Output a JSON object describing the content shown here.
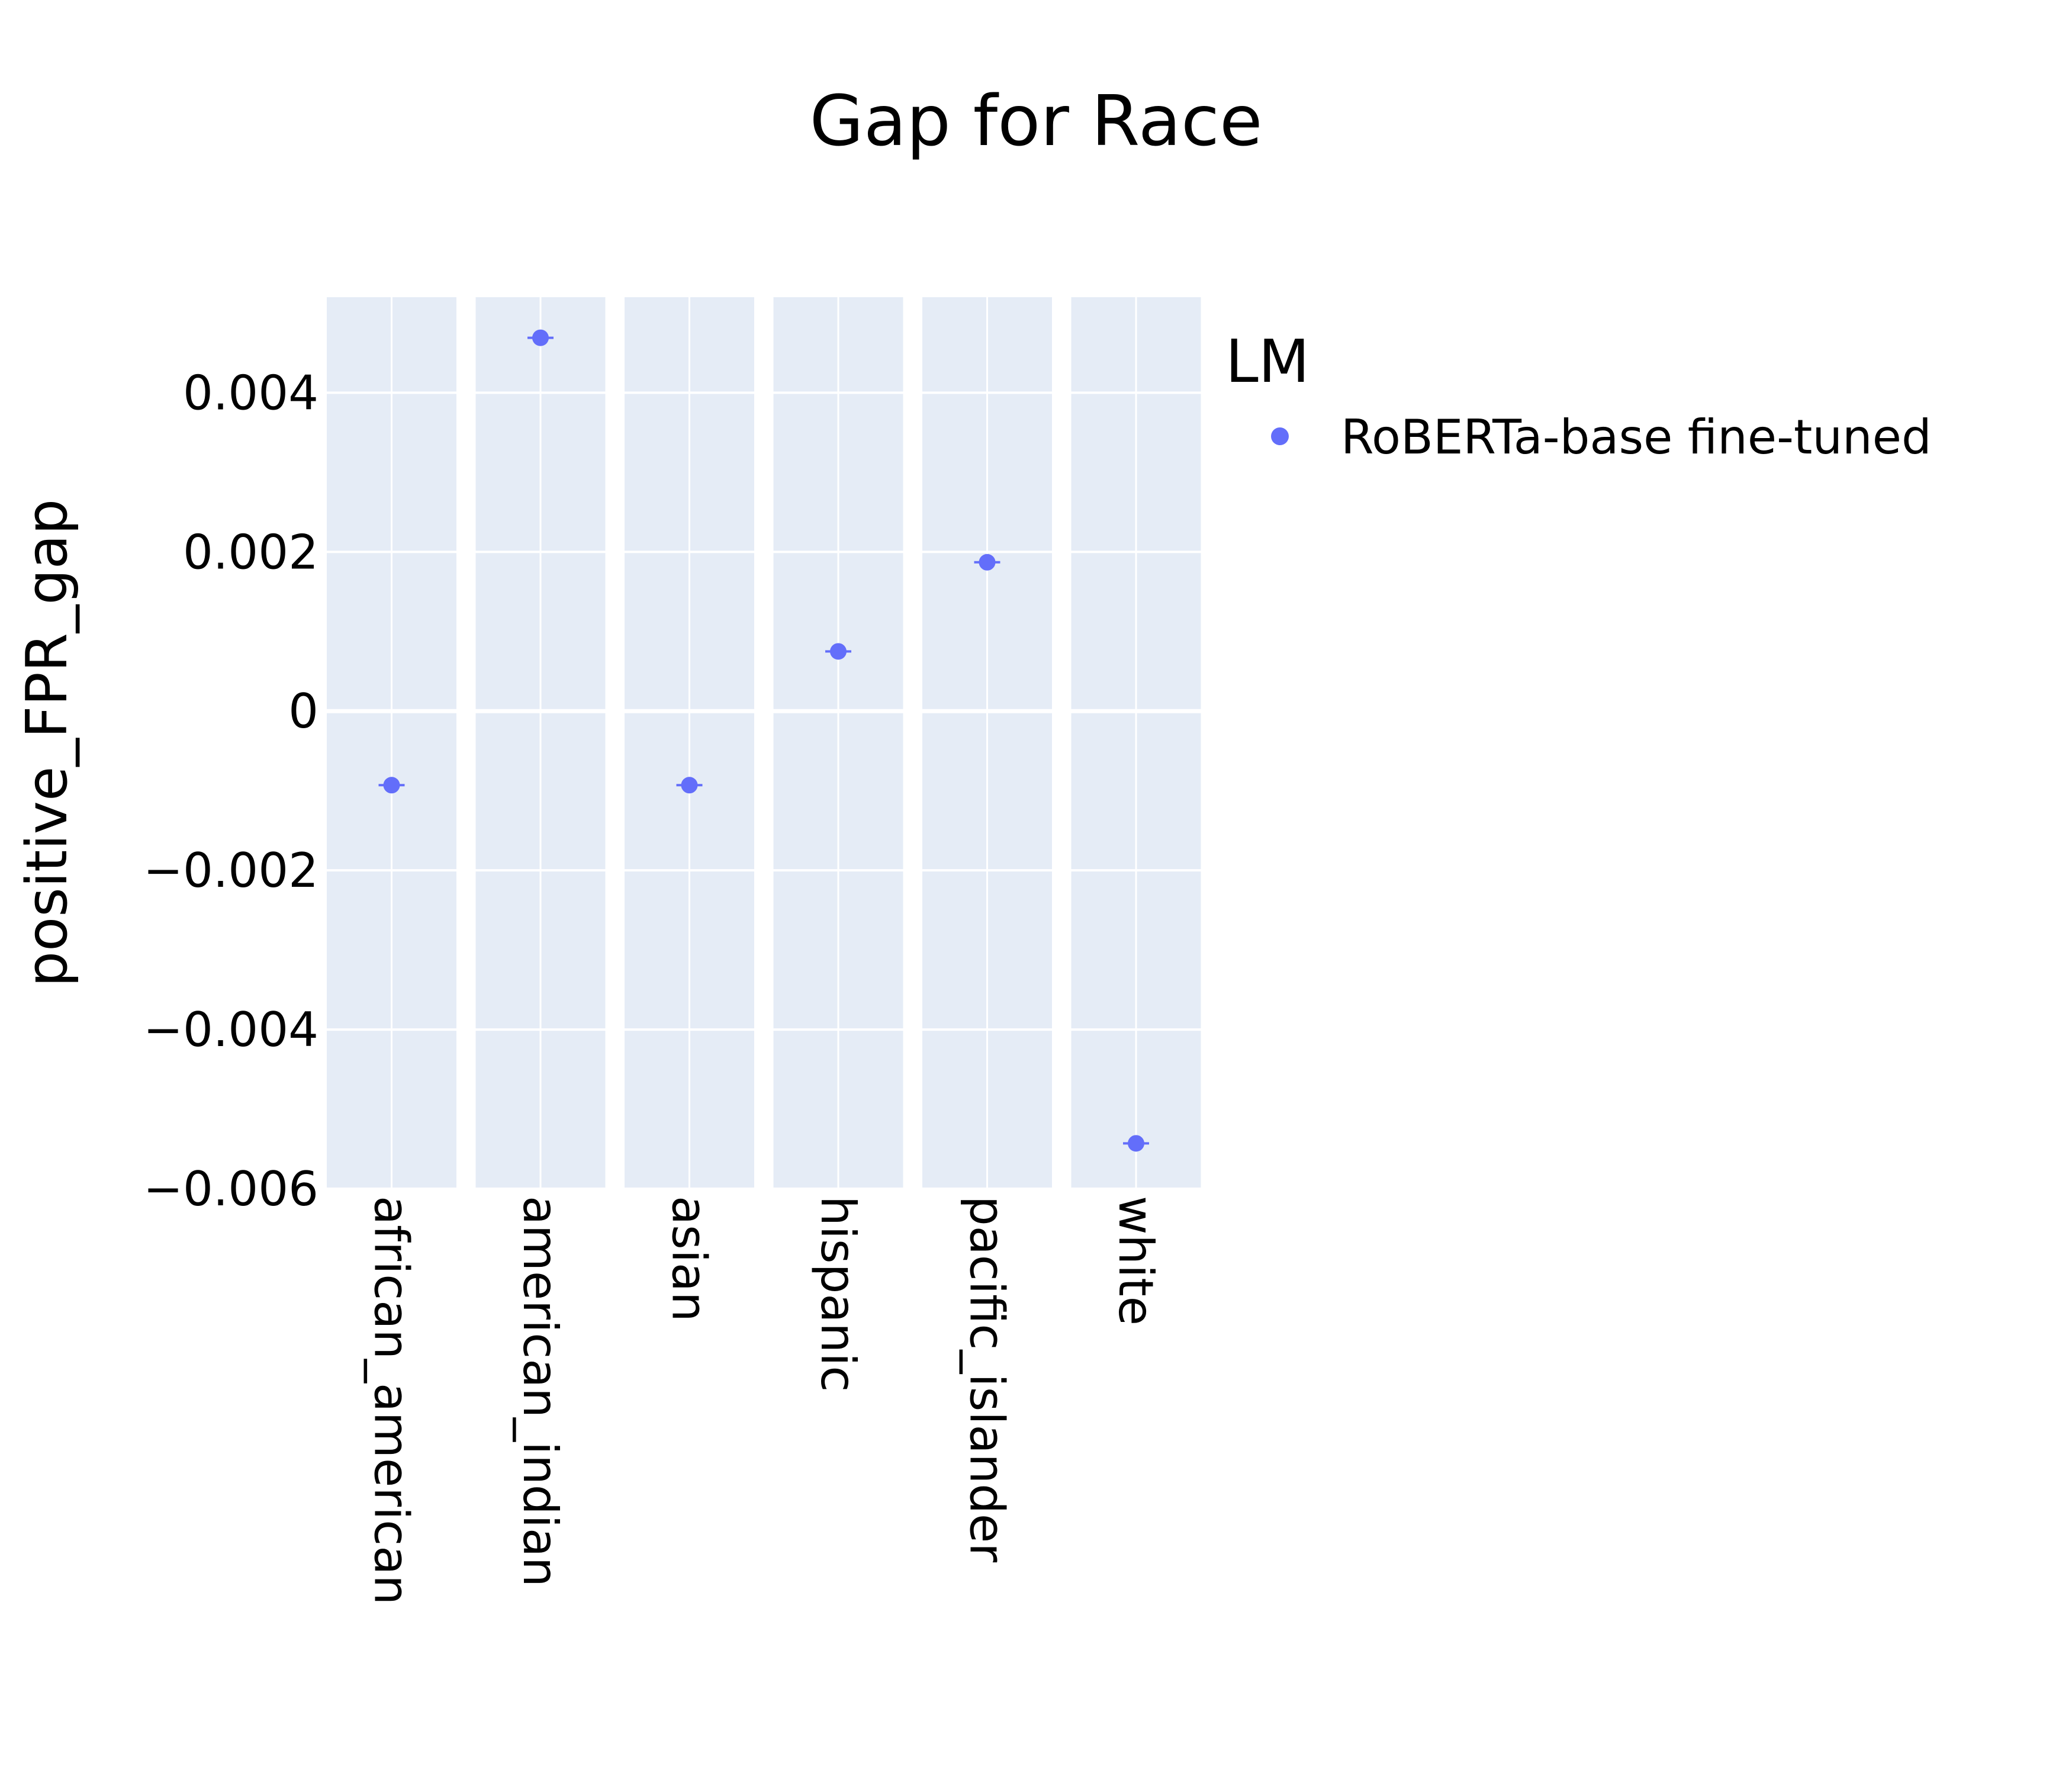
{
  "chart_data": {
    "type": "scatter",
    "title": "Gap for Race",
    "xlabel": "",
    "ylabel": "positive_FPR_gap",
    "facet_column": "Race",
    "categories": [
      "african_american",
      "american_indian",
      "asian",
      "hispanic",
      "pacific_islander",
      "white"
    ],
    "series": [
      {
        "name": "RoBERTa-base fine-tuned",
        "values": [
          -0.00093,
          0.00469,
          -0.00093,
          0.00075,
          0.00187,
          -0.00543
        ],
        "color": "#636efa"
      }
    ],
    "ylim": [
      -0.006,
      0.0052
    ],
    "yticks": [
      0.004,
      0.002,
      0,
      -0.002,
      -0.004,
      -0.006
    ],
    "ytick_labels": [
      "0.004",
      "0.002",
      "0",
      "−0.002",
      "−0.004",
      "−0.006"
    ],
    "legend": {
      "title": "LM",
      "placement": "top-right, outside plot"
    },
    "grid": true,
    "colors": {
      "plot_background": "#e5ecf6",
      "grid": "#ffffff",
      "marker": "#636efa"
    }
  }
}
